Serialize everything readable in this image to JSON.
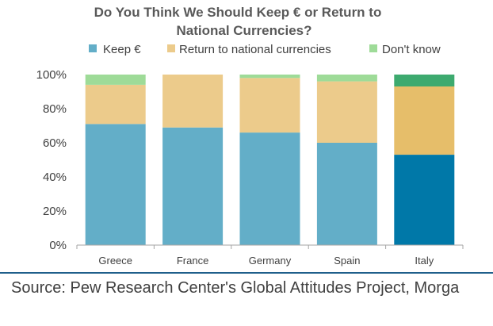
{
  "chart_data": {
    "type": "bar",
    "stacked": true,
    "title_lines": [
      "Do You Think We Should Keep € or Return to",
      "National Currencies?"
    ],
    "categories": [
      "Greece",
      "France",
      "Germany",
      "Spain",
      "Italy"
    ],
    "series": [
      {
        "name": "Keep €",
        "values": [
          71,
          69,
          66,
          60,
          53
        ],
        "color": "#63AEC8"
      },
      {
        "name": "Return to national currencies",
        "values": [
          23,
          31,
          32,
          36,
          40
        ],
        "color": "#ECCB8B"
      },
      {
        "name": "Don't know",
        "values": [
          6,
          0,
          2,
          4,
          7
        ],
        "color": "#9EDB98"
      }
    ],
    "highlight": {
      "category": "Italy",
      "colors": [
        "#0078A8",
        "#E6BE6A",
        "#3DAA6F"
      ]
    },
    "y_ticks": [
      "0%",
      "20%",
      "40%",
      "60%",
      "80%",
      "100%"
    ],
    "ylim": [
      0,
      100
    ],
    "grid": false,
    "legend_position": "top"
  },
  "source_text": "Source: Pew Research Center's Global Attitudes Project, Morga"
}
